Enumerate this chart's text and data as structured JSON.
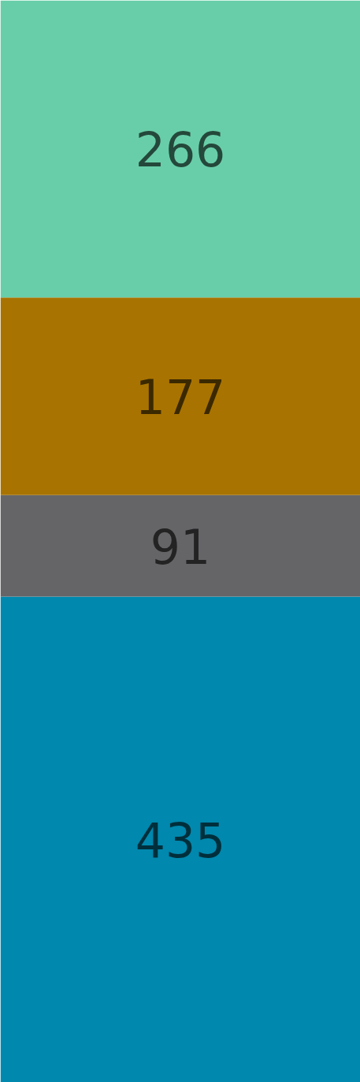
{
  "chart_data": {
    "type": "bar",
    "stacked": true,
    "data_labels": true,
    "categories": [
      null
    ],
    "series": [
      {
        "color": "#0088ae",
        "values": [
          435
        ]
      },
      {
        "color": "#656567",
        "values": [
          91
        ]
      },
      {
        "color": "#a87300",
        "values": [
          177
        ]
      },
      {
        "color": "#68cea9",
        "values": [
          266
        ]
      }
    ]
  }
}
